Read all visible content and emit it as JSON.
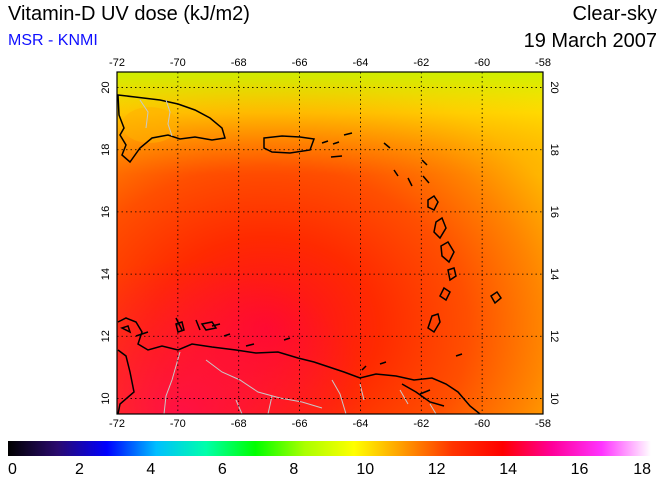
{
  "header": {
    "title": "Vitamin-D UV dose (kJ/m2)",
    "source": "MSR - KNMI",
    "condition": "Clear-sky",
    "date": "19 March 2007"
  },
  "map": {
    "lon_ticks": [
      "-72",
      "-70",
      "-68",
      "-66",
      "-64",
      "-62",
      "-60",
      "-58"
    ],
    "lat_ticks": [
      "20",
      "18",
      "16",
      "14",
      "12",
      "10"
    ],
    "lon_range": [
      -72,
      -58
    ],
    "lat_range": [
      9.5,
      20.5
    ],
    "grid": true,
    "field_colors": [
      "#ff1a00",
      "#ff3300",
      "#ff6600",
      "#ff9900",
      "#ffcc00",
      "#ffff00",
      "#ccff00"
    ],
    "land_outline_color": "#000000",
    "border_color": "#c8c8c8"
  },
  "colorbar": {
    "tick_labels": [
      "0",
      "2",
      "4",
      "6",
      "8",
      "10",
      "12",
      "14",
      "16",
      "18"
    ],
    "range": [
      0,
      18
    ],
    "stops": [
      "#000000",
      "#2a0a6e",
      "#0000ff",
      "#00bfff",
      "#00ffaa",
      "#00ff00",
      "#aaff00",
      "#ffff00",
      "#ff9900",
      "#ff3300",
      "#ff0000",
      "#ff0099",
      "#ff33ff",
      "#ffffff"
    ]
  }
}
